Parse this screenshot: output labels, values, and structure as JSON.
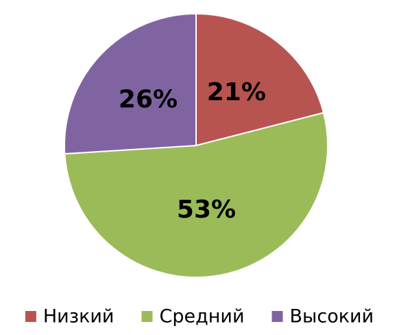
{
  "chart_data": {
    "type": "pie",
    "categories": [
      "Низкий",
      "Средний",
      "Высокий"
    ],
    "values": [
      21,
      53,
      26
    ],
    "value_labels": [
      "21%",
      "53%",
      "26%"
    ],
    "colors": [
      "#b85450",
      "#9bbb59",
      "#8064a2"
    ],
    "legend": "bottom"
  }
}
